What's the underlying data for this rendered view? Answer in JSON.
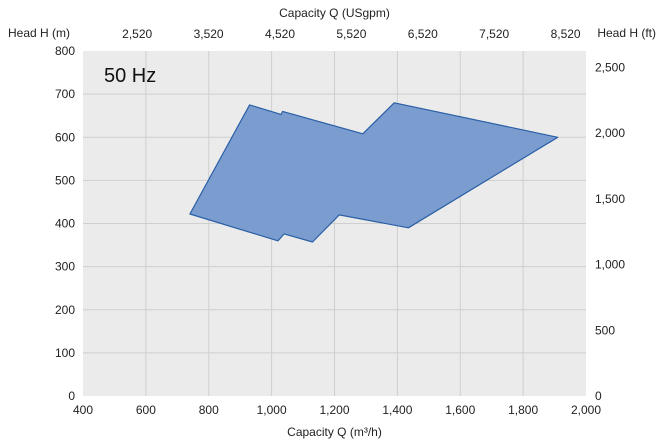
{
  "chart_data": {
    "type": "area",
    "badge": "50 Hz",
    "x_bottom": {
      "label": "Capacity Q (m³/h)",
      "lim": [
        400,
        2000
      ],
      "ticks": [
        400,
        600,
        800,
        1000,
        1200,
        1400,
        1600,
        1800,
        2000
      ],
      "tick_labels": [
        "400",
        "600",
        "800",
        "1,000",
        "1,200",
        "1,400",
        "1,600",
        "1,800",
        "2,000"
      ]
    },
    "x_top": {
      "label": "Capacity Q (USgpm)",
      "ticks": [
        2520,
        3520,
        4520,
        5520,
        6520,
        7520,
        8520
      ],
      "tick_labels": [
        "2,520",
        "3,520",
        "4,520",
        "5,520",
        "6,520",
        "7,520",
        "8,520"
      ]
    },
    "y_left": {
      "label": "Head H (m)",
      "lim": [
        0,
        800
      ],
      "ticks": [
        0,
        100,
        200,
        300,
        400,
        500,
        600,
        700,
        800
      ],
      "tick_labels": [
        "0",
        "100",
        "200",
        "300",
        "400",
        "500",
        "600",
        "700",
        "800"
      ]
    },
    "y_right": {
      "label": "Head H (ft)",
      "ticks": [
        0,
        500,
        1000,
        1500,
        2000,
        2500
      ],
      "tick_labels": [
        "0",
        "500",
        "1,000",
        "1,500",
        "2,000",
        "2,500"
      ]
    },
    "grid": true,
    "polygon": [
      [
        740,
        422
      ],
      [
        930,
        675
      ],
      [
        1030,
        653
      ],
      [
        1035,
        660
      ],
      [
        1290,
        608
      ],
      [
        1390,
        680
      ],
      [
        1910,
        600
      ],
      [
        1435,
        390
      ],
      [
        1215,
        420
      ],
      [
        1130,
        357
      ],
      [
        1040,
        376
      ],
      [
        1020,
        360
      ],
      [
        740,
        422
      ]
    ],
    "fill_color": "#7b9ccf",
    "line_color": "#2a5fa5",
    "background_color": "#ebebeb",
    "grid_color": "#cfcfcf"
  }
}
